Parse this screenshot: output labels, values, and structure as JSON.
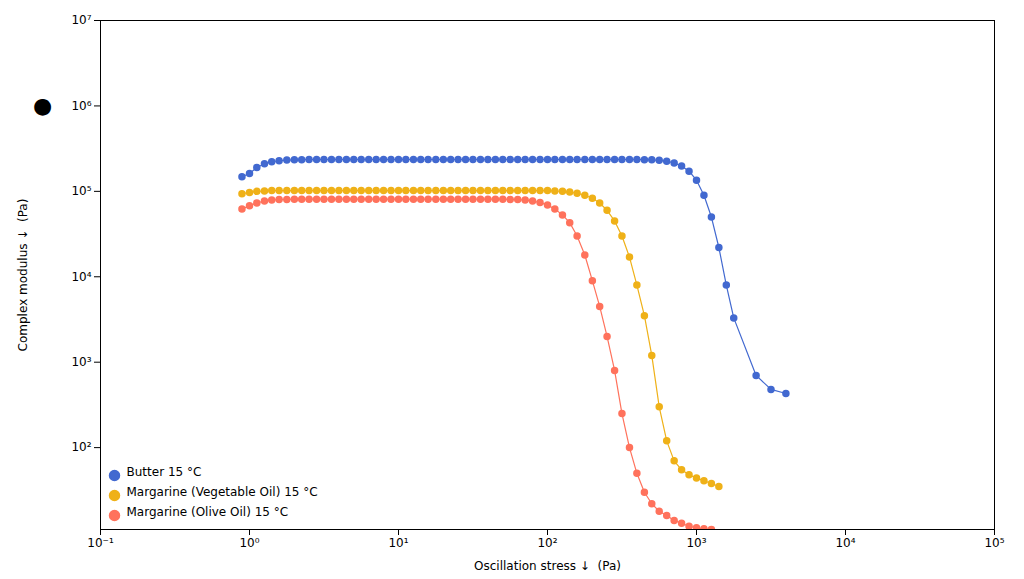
{
  "chart_data": {
    "type": "line",
    "xlabel": "Oscillation stress ↓  (Pa)",
    "ylabel": "Complex modulus ↓  (Pa)",
    "log": true,
    "grid": false,
    "legend": "lower left",
    "marker": "circle",
    "line_style": "solid",
    "xlim": [
      0.1,
      100000.0
    ],
    "ylim": [
      11.0,
      10000000.0
    ],
    "xticks": [
      {
        "value": 0.1,
        "label": "10⁻¹"
      },
      {
        "value": 1,
        "label": "10⁰"
      },
      {
        "value": 10,
        "label": "10¹"
      },
      {
        "value": 100,
        "label": "10²"
      },
      {
        "value": 1000,
        "label": "10³"
      },
      {
        "value": 10000,
        "label": "10⁴"
      },
      {
        "value": 100000,
        "label": "10⁵"
      }
    ],
    "yticks": [
      {
        "value": 100,
        "label": "10²"
      },
      {
        "value": 1000,
        "label": "10³"
      },
      {
        "value": 10000,
        "label": "10⁴"
      },
      {
        "value": 100000,
        "label": "10⁵"
      },
      {
        "value": 1000000,
        "label": "10⁶"
      },
      {
        "value": 10000000,
        "label": "10⁷"
      }
    ],
    "annotations": [
      {
        "text": "●",
        "y": 1000000
      }
    ],
    "series": [
      {
        "name": "Butter 15 °C",
        "x": [
          0.89,
          1.0,
          1.12,
          1.26,
          1.41,
          1.58,
          1.78,
          2.0,
          2.24,
          2.51,
          2.82,
          3.16,
          3.55,
          3.98,
          4.47,
          5.01,
          5.62,
          6.31,
          7.08,
          7.94,
          8.91,
          10.0,
          11.2,
          12.6,
          14.1,
          15.8,
          17.8,
          20.0,
          22.4,
          25.1,
          28.2,
          31.6,
          35.5,
          39.8,
          44.7,
          50.1,
          56.2,
          63.1,
          70.8,
          79.4,
          89.1,
          100.0,
          112.0,
          126.0,
          141.0,
          158.0,
          178.0,
          200.0,
          224.0,
          251.0,
          282.0,
          316.0,
          355.0,
          398.0,
          447.0,
          501.0,
          562.0,
          631.0,
          708.0,
          794.0,
          891.0,
          1000.0,
          1122.0,
          1259.0,
          1413.0,
          1585.0,
          1778.0,
          2512.0,
          3162.0,
          3981.0
        ],
        "values": [
          148000,
          162000,
          190000,
          210000,
          222000,
          228000,
          232000,
          234000,
          235000,
          236000,
          236000,
          236000,
          236000,
          236000,
          236000,
          236000,
          236000,
          236000,
          236000,
          236000,
          236000,
          236000,
          236000,
          236000,
          236000,
          236000,
          236000,
          236000,
          236000,
          236000,
          236000,
          236000,
          236000,
          236000,
          236000,
          236000,
          236000,
          236000,
          236000,
          236000,
          236000,
          236000,
          236000,
          236000,
          236000,
          236000,
          236000,
          236000,
          236000,
          236000,
          236000,
          236000,
          236000,
          236000,
          235000,
          234000,
          231000,
          225000,
          215000,
          198000,
          172000,
          135000,
          90000,
          50000,
          22000,
          8000,
          3300,
          700,
          480,
          430
        ]
      },
      {
        "name": "Margarine (Vegetable Oil) 15 °C",
        "x": [
          0.89,
          1.0,
          1.12,
          1.26,
          1.41,
          1.58,
          1.78,
          2.0,
          2.24,
          2.51,
          2.82,
          3.16,
          3.55,
          3.98,
          4.47,
          5.01,
          5.62,
          6.31,
          7.08,
          7.94,
          8.91,
          10.0,
          11.2,
          12.6,
          14.1,
          15.8,
          17.8,
          20.0,
          22.4,
          25.1,
          28.2,
          31.6,
          35.5,
          39.8,
          44.7,
          50.1,
          56.2,
          63.1,
          70.8,
          79.4,
          89.1,
          100.0,
          112.0,
          126.0,
          141.0,
          158.0,
          178.0,
          200.0,
          224.0,
          251.0,
          282.0,
          316.0,
          355.0,
          398.0,
          447.0,
          501.0,
          562.0,
          631.0,
          708.0,
          794.0,
          891.0,
          1000.0,
          1122.0,
          1259.0,
          1413.0
        ],
        "values": [
          94000,
          97000,
          100000,
          101000,
          102000,
          102000,
          102000,
          102000,
          102000,
          102000,
          102000,
          102000,
          102000,
          102000,
          102000,
          102000,
          102000,
          102000,
          102000,
          102000,
          102000,
          102000,
          102000,
          102000,
          102000,
          102000,
          102000,
          102000,
          102000,
          102000,
          102000,
          102000,
          102000,
          102000,
          102000,
          102000,
          102000,
          102000,
          102000,
          102000,
          102000,
          102000,
          101000,
          100000,
          98000,
          95000,
          90000,
          83000,
          73000,
          60000,
          45000,
          30000,
          17000,
          8000,
          3500,
          1200,
          300,
          120,
          70,
          55,
          48,
          44,
          41,
          38,
          35
        ]
      },
      {
        "name": "Margarine (Olive Oil) 15 °C",
        "x": [
          0.89,
          1.0,
          1.12,
          1.26,
          1.41,
          1.58,
          1.78,
          2.0,
          2.24,
          2.51,
          2.82,
          3.16,
          3.55,
          3.98,
          4.47,
          5.01,
          5.62,
          6.31,
          7.08,
          7.94,
          8.91,
          10.0,
          11.2,
          12.6,
          14.1,
          15.8,
          17.8,
          20.0,
          22.4,
          25.1,
          28.2,
          31.6,
          35.5,
          39.8,
          44.7,
          50.1,
          56.2,
          63.1,
          70.8,
          79.4,
          89.1,
          100.0,
          112.0,
          126.0,
          141.0,
          158.0,
          178.0,
          200.0,
          224.0,
          251.0,
          282.0,
          316.0,
          355.0,
          398.0,
          447.0,
          501.0,
          562.0,
          631.0,
          708.0,
          794.0,
          891.0,
          1000.0,
          1122.0,
          1259.0
        ],
        "values": [
          62000,
          68000,
          73000,
          77000,
          79000,
          80000,
          80500,
          81000,
          81000,
          81000,
          81000,
          81000,
          81000,
          81000,
          81000,
          81000,
          81000,
          81000,
          81000,
          81000,
          81000,
          81000,
          81000,
          81000,
          81000,
          81000,
          81000,
          81000,
          81000,
          81000,
          81000,
          81000,
          81000,
          81000,
          81000,
          81000,
          80500,
          80000,
          79000,
          77000,
          74000,
          69000,
          62000,
          53000,
          43000,
          30000,
          18000,
          9000,
          4500,
          2000,
          800,
          250,
          100,
          50,
          30,
          22,
          18,
          16,
          14,
          13,
          12,
          11.5,
          11.2,
          11.0
        ]
      }
    ]
  }
}
